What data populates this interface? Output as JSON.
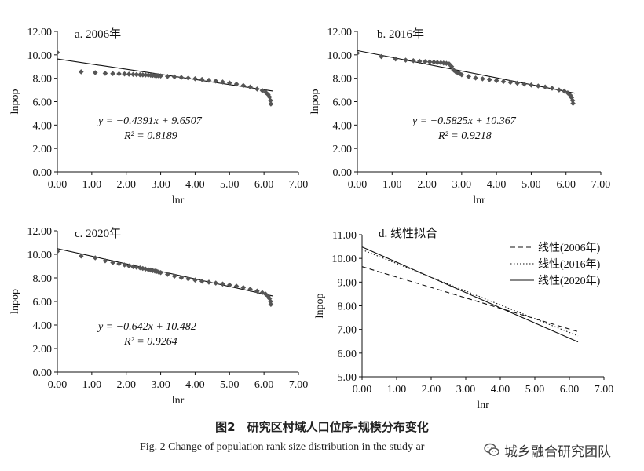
{
  "chart_data": [
    {
      "type": "scatter",
      "title": "a. 2006年",
      "xlabel": "lnr",
      "ylabel": "lnpop",
      "xlim": [
        0,
        7
      ],
      "ylim": [
        0,
        12
      ],
      "xticks": [
        "0.00",
        "1.00",
        "2.00",
        "3.00",
        "4.00",
        "5.00",
        "6.00",
        "7.00"
      ],
      "yticks": [
        "0.00",
        "2.00",
        "4.00",
        "6.00",
        "8.00",
        "10.00",
        "12.00"
      ],
      "series": [
        {
          "marker": "diamond",
          "points": [
            [
              0,
              10.2
            ],
            [
              0.69,
              8.55
            ],
            [
              1.1,
              8.48
            ],
            [
              1.39,
              8.42
            ],
            [
              1.61,
              8.4
            ],
            [
              1.79,
              8.38
            ],
            [
              1.95,
              8.37
            ],
            [
              2.08,
              8.35
            ],
            [
              2.2,
              8.33
            ],
            [
              2.3,
              8.32
            ],
            [
              2.4,
              8.3
            ],
            [
              2.48,
              8.29
            ],
            [
              2.56,
              8.28
            ],
            [
              2.64,
              8.27
            ],
            [
              2.71,
              8.26
            ],
            [
              2.77,
              8.25
            ],
            [
              2.83,
              8.23
            ],
            [
              2.89,
              8.22
            ],
            [
              2.94,
              8.21
            ],
            [
              3.0,
              8.2
            ],
            [
              3.2,
              8.16
            ],
            [
              3.4,
              8.12
            ],
            [
              3.6,
              8.07
            ],
            [
              3.8,
              8.02
            ],
            [
              4.0,
              7.96
            ],
            [
              4.2,
              7.9
            ],
            [
              4.4,
              7.83
            ],
            [
              4.6,
              7.76
            ],
            [
              4.8,
              7.68
            ],
            [
              5.0,
              7.6
            ],
            [
              5.2,
              7.5
            ],
            [
              5.4,
              7.38
            ],
            [
              5.6,
              7.25
            ],
            [
              5.8,
              7.08
            ],
            [
              5.95,
              6.95
            ],
            [
              6.05,
              6.8
            ],
            [
              6.12,
              6.6
            ],
            [
              6.16,
              6.4
            ],
            [
              6.19,
              6.1
            ],
            [
              6.2,
              5.8
            ]
          ]
        }
      ],
      "fit": {
        "slope": -0.4391,
        "intercept": 9.6507,
        "x_range": [
          0,
          6.25
        ]
      },
      "equation": "y = −0.4391x + 9.6507",
      "r2": "R² = 0.8189"
    },
    {
      "type": "scatter",
      "title": "b. 2016年",
      "xlabel": "lnr",
      "ylabel": "lnpop",
      "xlim": [
        0,
        7
      ],
      "ylim": [
        0,
        12
      ],
      "xticks": [
        "0.00",
        "1.00",
        "2.00",
        "3.00",
        "4.00",
        "5.00",
        "6.00",
        "7.00"
      ],
      "yticks": [
        "0.00",
        "2.00",
        "4.00",
        "6.00",
        "8.00",
        "10.00",
        "12.00"
      ],
      "series": [
        {
          "marker": "diamond",
          "points": [
            [
              0,
              10.15
            ],
            [
              0.69,
              9.85
            ],
            [
              1.1,
              9.65
            ],
            [
              1.39,
              9.55
            ],
            [
              1.61,
              9.5
            ],
            [
              1.79,
              9.45
            ],
            [
              1.95,
              9.42
            ],
            [
              2.08,
              9.4
            ],
            [
              2.2,
              9.38
            ],
            [
              2.3,
              9.35
            ],
            [
              2.4,
              9.33
            ],
            [
              2.48,
              9.3
            ],
            [
              2.56,
              9.27
            ],
            [
              2.64,
              9.22
            ],
            [
              2.71,
              9.0
            ],
            [
              2.77,
              8.7
            ],
            [
              2.83,
              8.55
            ],
            [
              2.89,
              8.45
            ],
            [
              2.94,
              8.4
            ],
            [
              3.0,
              8.3
            ],
            [
              3.2,
              8.15
            ],
            [
              3.4,
              8.02
            ],
            [
              3.6,
              7.95
            ],
            [
              3.8,
              7.88
            ],
            [
              4.0,
              7.8
            ],
            [
              4.2,
              7.72
            ],
            [
              4.4,
              7.65
            ],
            [
              4.6,
              7.58
            ],
            [
              4.8,
              7.5
            ],
            [
              5.0,
              7.42
            ],
            [
              5.2,
              7.34
            ],
            [
              5.4,
              7.25
            ],
            [
              5.6,
              7.14
            ],
            [
              5.8,
              7.0
            ],
            [
              5.95,
              6.9
            ],
            [
              6.05,
              6.75
            ],
            [
              6.12,
              6.55
            ],
            [
              6.16,
              6.35
            ],
            [
              6.19,
              6.1
            ],
            [
              6.2,
              5.85
            ]
          ]
        }
      ],
      "fit": {
        "slope": -0.5825,
        "intercept": 10.367,
        "x_range": [
          0,
          6.25
        ]
      },
      "equation": "y = −0.5825x + 10.367",
      "r2": "R² = 0.9218"
    },
    {
      "type": "scatter",
      "title": "c. 2020年",
      "xlabel": "lnr",
      "ylabel": "lnpop",
      "xlim": [
        0,
        7
      ],
      "ylim": [
        0,
        12
      ],
      "xticks": [
        "0.00",
        "1.00",
        "2.00",
        "3.00",
        "4.00",
        "5.00",
        "6.00",
        "7.00"
      ],
      "yticks": [
        "0.00",
        "2.00",
        "4.00",
        "6.00",
        "8.00",
        "10.00",
        "12.00"
      ],
      "series": [
        {
          "marker": "diamond",
          "points": [
            [
              0,
              10.25
            ],
            [
              0.69,
              9.85
            ],
            [
              1.1,
              9.7
            ],
            [
              1.39,
              9.45
            ],
            [
              1.61,
              9.3
            ],
            [
              1.79,
              9.2
            ],
            [
              1.95,
              9.1
            ],
            [
              2.08,
              9.02
            ],
            [
              2.2,
              8.95
            ],
            [
              2.3,
              8.9
            ],
            [
              2.4,
              8.85
            ],
            [
              2.48,
              8.8
            ],
            [
              2.56,
              8.75
            ],
            [
              2.64,
              8.7
            ],
            [
              2.71,
              8.66
            ],
            [
              2.77,
              8.62
            ],
            [
              2.83,
              8.58
            ],
            [
              2.89,
              8.55
            ],
            [
              2.94,
              8.5
            ],
            [
              3.0,
              8.45
            ],
            [
              3.2,
              8.3
            ],
            [
              3.4,
              8.15
            ],
            [
              3.6,
              8.02
            ],
            [
              3.8,
              7.92
            ],
            [
              4.0,
              7.82
            ],
            [
              4.2,
              7.72
            ],
            [
              4.4,
              7.64
            ],
            [
              4.6,
              7.56
            ],
            [
              4.8,
              7.48
            ],
            [
              5.0,
              7.4
            ],
            [
              5.2,
              7.3
            ],
            [
              5.4,
              7.18
            ],
            [
              5.6,
              7.04
            ],
            [
              5.8,
              6.88
            ],
            [
              5.95,
              6.75
            ],
            [
              6.05,
              6.62
            ],
            [
              6.12,
              6.45
            ],
            [
              6.16,
              6.25
            ],
            [
              6.19,
              6.0
            ],
            [
              6.2,
              5.75
            ]
          ]
        }
      ],
      "fit": {
        "slope": -0.642,
        "intercept": 10.482,
        "x_range": [
          0,
          6.25
        ]
      },
      "equation": "y = −0.642x + 10.482",
      "r2": "R² = 0.9264"
    },
    {
      "type": "line",
      "title": "d. 线性拟合",
      "xlabel": "lnr",
      "ylabel": "lnpop",
      "xlim": [
        0,
        7
      ],
      "ylim": [
        5,
        11
      ],
      "xticks": [
        "0.00",
        "1.00",
        "2.00",
        "3.00",
        "4.00",
        "5.00",
        "6.00",
        "7.00"
      ],
      "yticks": [
        "5.00",
        "6.00",
        "7.00",
        "8.00",
        "9.00",
        "10.00",
        "11.00"
      ],
      "legend_position": "top-right",
      "series": [
        {
          "name": "线性(2006年)",
          "style": "dashed",
          "slope": -0.4391,
          "intercept": 9.6507,
          "x_range": [
            0,
            6.25
          ]
        },
        {
          "name": "线性(2016年)",
          "style": "dotted",
          "slope": -0.5825,
          "intercept": 10.367,
          "x_range": [
            0,
            6.25
          ]
        },
        {
          "name": "线性(2020年)",
          "style": "solid",
          "slope": -0.642,
          "intercept": 10.482,
          "x_range": [
            0,
            6.25
          ]
        }
      ]
    }
  ],
  "caption": {
    "cn": "图2　研究区村域人口位序-规模分布变化",
    "en": "Fig. 2   Change of population rank size distribution in the study ar"
  },
  "watermark": {
    "text": "城乡融合研究团队",
    "icon": "wechat-icon"
  },
  "colors": {
    "marker": "#555555",
    "line": "#111111"
  }
}
